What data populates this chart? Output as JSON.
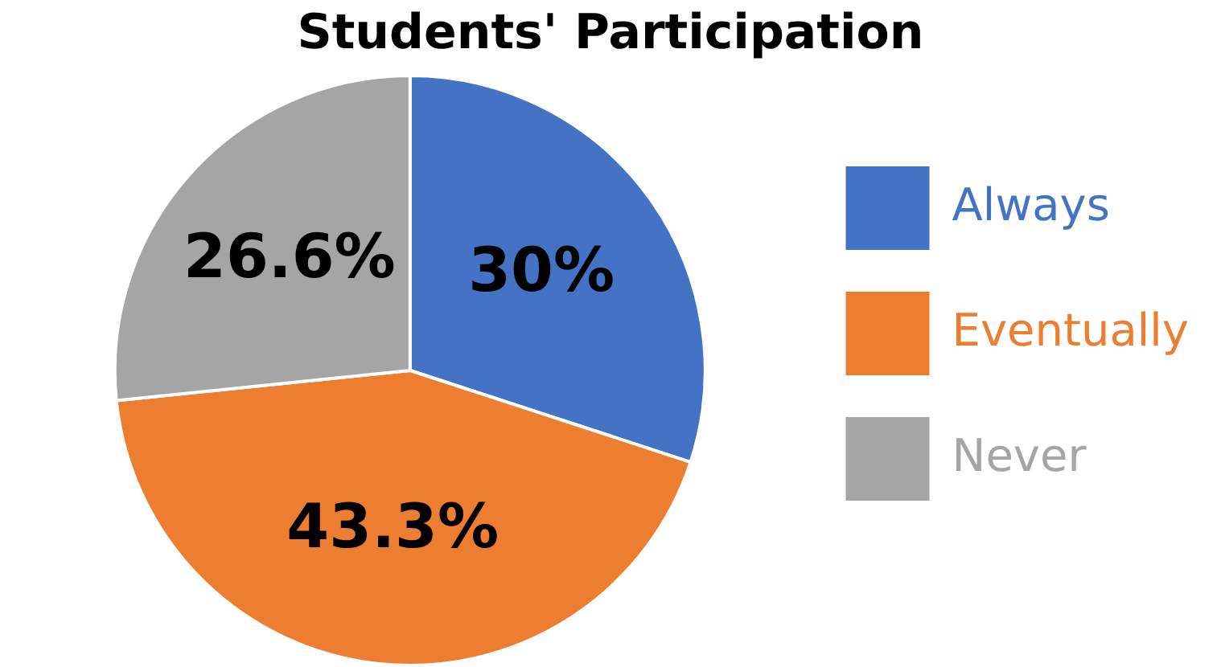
{
  "chart_data": {
    "type": "pie",
    "title": "Students' Participation",
    "categories": [
      "Always",
      "Eventually",
      "Never"
    ],
    "values": [
      30,
      43.3,
      26.6
    ],
    "colors": [
      "#4472c4",
      "#ed7d31",
      "#a5a5a5"
    ],
    "value_labels": [
      "30%",
      "43.3%",
      "26.6%"
    ],
    "legend": "right"
  }
}
